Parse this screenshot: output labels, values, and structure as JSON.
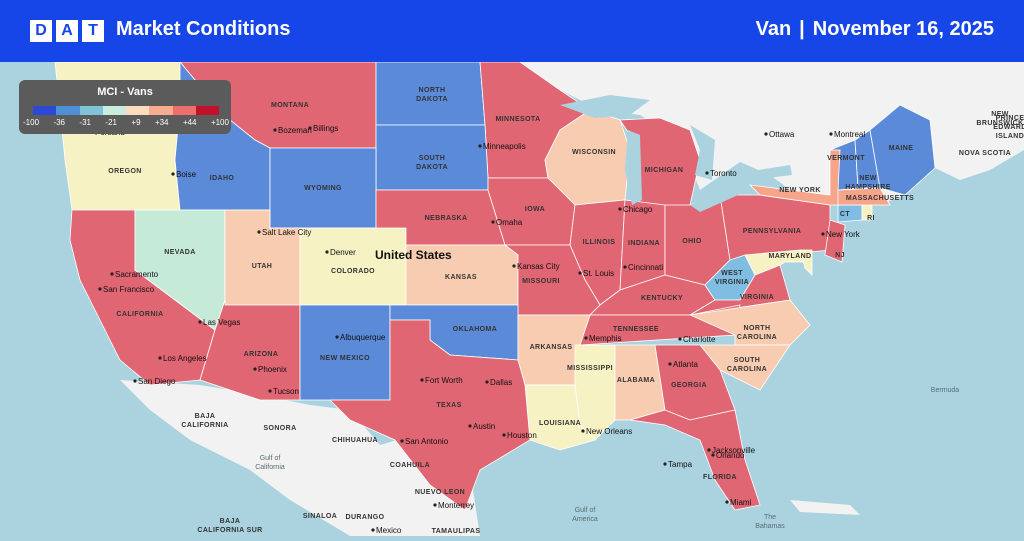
{
  "header": {
    "logo_letters": [
      "D",
      "A",
      "T"
    ],
    "title": "Market Conditions",
    "mode": "Van",
    "separator": "|",
    "date": "November 16, 2025"
  },
  "legend": {
    "title": "MCI - Vans",
    "ticks": [
      "-100",
      "-36",
      "-31",
      "-21",
      "+9",
      "+34",
      "+44",
      "+100"
    ],
    "colors": [
      "#2b48d6",
      "#4f8fd6",
      "#7fc4d6",
      "#c9ecdf",
      "#fcdcbf",
      "#f8ac8f",
      "#ee6e6e",
      "#c0102a"
    ]
  },
  "colors": {
    "red": "#e06673",
    "blue": "#5b8ad9",
    "light_yellow": "#f7f2c4",
    "peach": "#f8ccb0",
    "salmon": "#f6a58a",
    "mint": "#c5ead8",
    "light_blue": "#7fbde3",
    "land": "#f2f2f2",
    "water": "#aad3df"
  },
  "map": {
    "country_label": "United States",
    "states": [
      {
        "abbr": "MT",
        "label": "MONTANA",
        "mci": "red"
      },
      {
        "abbr": "ND",
        "label": "NORTH\nDAKOTA",
        "mci": "blue"
      },
      {
        "abbr": "MN",
        "label": "MINNESOTA",
        "mci": "red"
      },
      {
        "abbr": "WA",
        "label": "",
        "mci": "light_yellow"
      },
      {
        "abbr": "OR",
        "label": "OREGON",
        "mci": "light_yellow"
      },
      {
        "abbr": "ID",
        "label": "IDAHO",
        "mci": "blue"
      },
      {
        "abbr": "WY",
        "label": "WYOMING",
        "mci": "blue"
      },
      {
        "abbr": "SD",
        "label": "SOUTH\nDAKOTA",
        "mci": "blue"
      },
      {
        "abbr": "WI",
        "label": "WISCONSIN",
        "mci": "peach"
      },
      {
        "abbr": "MI",
        "label": "MICHIGAN",
        "mci": "red"
      },
      {
        "abbr": "CA",
        "label": "CALIFORNIA",
        "mci": "red"
      },
      {
        "abbr": "NV",
        "label": "NEVADA",
        "mci": "mint"
      },
      {
        "abbr": "UT",
        "label": "UTAH",
        "mci": "peach"
      },
      {
        "abbr": "CO",
        "label": "COLORADO",
        "mci": "light_yellow"
      },
      {
        "abbr": "NE",
        "label": "NEBRASKA",
        "mci": "red"
      },
      {
        "abbr": "IA",
        "label": "IOWA",
        "mci": "red"
      },
      {
        "abbr": "IL",
        "label": "ILLINOIS",
        "mci": "red"
      },
      {
        "abbr": "IN",
        "label": "INDIANA",
        "mci": "red"
      },
      {
        "abbr": "OH",
        "label": "OHIO",
        "mci": "red"
      },
      {
        "abbr": "PA",
        "label": "PENNSYLVANIA",
        "mci": "red"
      },
      {
        "abbr": "NY",
        "label": "NEW YORK",
        "mci": "salmon"
      },
      {
        "abbr": "AZ",
        "label": "ARIZONA",
        "mci": "red"
      },
      {
        "abbr": "NM",
        "label": "NEW MEXICO",
        "mci": "blue"
      },
      {
        "abbr": "KS",
        "label": "KANSAS",
        "mci": "peach"
      },
      {
        "abbr": "MO",
        "label": "MISSOURI",
        "mci": "red"
      },
      {
        "abbr": "KY",
        "label": "KENTUCKY",
        "mci": "red"
      },
      {
        "abbr": "WV",
        "label": "WEST\nVIRGINIA",
        "mci": "light_blue"
      },
      {
        "abbr": "VA",
        "label": "VIRGINIA",
        "mci": "red"
      },
      {
        "abbr": "MD",
        "label": "MARYLAND",
        "mci": "light_yellow"
      },
      {
        "abbr": "OK",
        "label": "OKLAHOMA",
        "mci": "blue"
      },
      {
        "abbr": "AR",
        "label": "ARKANSAS",
        "mci": "peach"
      },
      {
        "abbr": "TN",
        "label": "TENNESSEE",
        "mci": "red"
      },
      {
        "abbr": "NC",
        "label": "NORTH\nCAROLINA",
        "mci": "peach"
      },
      {
        "abbr": "SC",
        "label": "SOUTH\nCAROLINA",
        "mci": "peach"
      },
      {
        "abbr": "TX",
        "label": "TEXAS",
        "mci": "red"
      },
      {
        "abbr": "LA",
        "label": "LOUISIANA",
        "mci": "light_yellow"
      },
      {
        "abbr": "MS",
        "label": "MISSISSIPPI",
        "mci": "light_yellow"
      },
      {
        "abbr": "AL",
        "label": "ALABAMA",
        "mci": "peach"
      },
      {
        "abbr": "GA",
        "label": "GEORGIA",
        "mci": "red"
      },
      {
        "abbr": "FL",
        "label": "FLORIDA",
        "mci": "red"
      },
      {
        "abbr": "VT",
        "label": "VERMONT",
        "mci": "blue"
      },
      {
        "abbr": "NH",
        "label": "NEW\nHAMPSHIRE",
        "mci": "blue"
      },
      {
        "abbr": "ME",
        "label": "MAINE",
        "mci": "blue"
      },
      {
        "abbr": "MA",
        "label": "MASSACHUSETTS",
        "mci": "salmon"
      },
      {
        "abbr": "CT",
        "label": "CT",
        "mci": "light_blue"
      },
      {
        "abbr": "RI",
        "label": "RI",
        "mci": "light_yellow"
      },
      {
        "abbr": "NJ",
        "label": "NJ",
        "mci": "red"
      },
      {
        "abbr": "DE",
        "label": "",
        "mci": "light_yellow"
      }
    ],
    "regions": [
      "NEW\nBRUNSWICK",
      "PRINCE\nEDWARD\nISLAND",
      "NOVA SCOTIA",
      "SONORA",
      "CHIHUAHUA",
      "COAHUILA",
      "NUEVO LEON",
      "SINALOA",
      "DURANGO",
      "TAMAULIPAS",
      "BAJA\nCALIFORNIA",
      "BAJA\nCALIFORNIA SUR"
    ],
    "cities": [
      "Portland",
      "Boise",
      "Bozeman",
      "Billings",
      "Salt Lake City",
      "Denver",
      "Sacramento",
      "San Francisco",
      "Las Vegas",
      "Los Angeles",
      "San Diego",
      "Phoenix",
      "Tucson",
      "Albuquerque",
      "Fort Worth",
      "Dallas",
      "Austin",
      "San Antonio",
      "Houston",
      "Omaha",
      "Minneapolis",
      "Kansas City",
      "St. Louis",
      "Chicago",
      "Cincinnati",
      "Memphis",
      "Atlanta",
      "Charlotte",
      "New Orleans",
      "Jacksonville",
      "Orlando",
      "Tampa",
      "Miami",
      "Toronto",
      "Ottawa",
      "Montreal",
      "New York",
      "Monterrey",
      "Mexico"
    ],
    "water_labels": [
      "Gulf of\nCalifornia",
      "Gulf of\nAmerica",
      "Bermuda",
      "The\nBahamas"
    ]
  }
}
